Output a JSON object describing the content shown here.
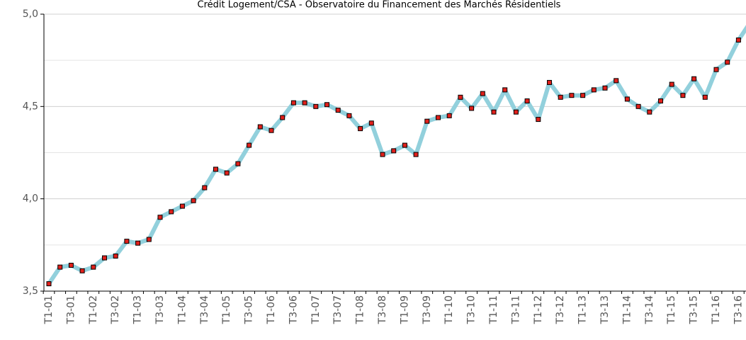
{
  "chart_data": {
    "type": "line",
    "title": "Crédit Logement/CSA - Observatoire du Financement des Marchés Résidentiels",
    "categories": [
      "T1-01",
      null,
      "T3-01",
      null,
      "T1-02",
      null,
      "T3-02",
      null,
      "T1-03",
      null,
      "T3-03",
      null,
      "T1-04",
      null,
      "T3-04",
      null,
      "T1-05",
      null,
      "T3-05",
      null,
      "T1-06",
      null,
      "T3-06",
      null,
      "T1-07",
      null,
      "T3-07",
      null,
      "T1-08",
      null,
      "T3-08",
      null,
      "T1-09",
      null,
      "T3-09",
      null,
      "T1-10",
      null,
      "T3-10",
      null,
      "T1-11",
      null,
      "T3-11",
      null,
      "T1-12",
      null,
      "T3-12",
      null,
      "T1-13",
      null,
      "T3-13",
      null,
      "T1-14",
      null,
      "T3-14",
      null,
      "T1-15",
      null,
      "T3-15",
      null,
      "T1-16",
      null,
      "T3-16",
      null
    ],
    "series": [
      {
        "color": "#92d0dc",
        "marker_color": "#e0201b",
        "values": [
          3.54,
          3.63,
          3.64,
          3.61,
          3.63,
          3.68,
          3.69,
          3.77,
          3.76,
          3.78,
          3.9,
          3.93,
          3.96,
          3.99,
          4.06,
          4.16,
          4.14,
          4.19,
          4.29,
          4.39,
          4.37,
          4.44,
          4.52,
          4.52,
          4.5,
          4.51,
          4.48,
          4.45,
          4.38,
          4.41,
          4.24,
          4.26,
          4.29,
          4.24,
          4.42,
          4.44,
          4.45,
          4.55,
          4.49,
          4.57,
          4.47,
          4.59,
          4.47,
          4.53,
          4.43,
          4.63,
          4.55,
          4.56,
          4.56,
          4.59,
          4.6,
          4.64,
          4.54,
          4.5,
          4.47,
          4.53,
          4.62,
          4.56,
          4.65,
          4.55,
          4.7,
          4.74,
          4.86,
          4.95
        ]
      }
    ],
    "ylim": [
      3.5,
      5.0
    ],
    "yticks": [
      {
        "value": 3.5,
        "label": "3,5"
      },
      {
        "value": 4.0,
        "label": "4,0"
      },
      {
        "value": 4.5,
        "label": "4,5"
      },
      {
        "value": 5.0,
        "label": "5,0"
      }
    ],
    "minor_gridlines": [
      3.75,
      4.25,
      4.75
    ],
    "grid": true
  }
}
